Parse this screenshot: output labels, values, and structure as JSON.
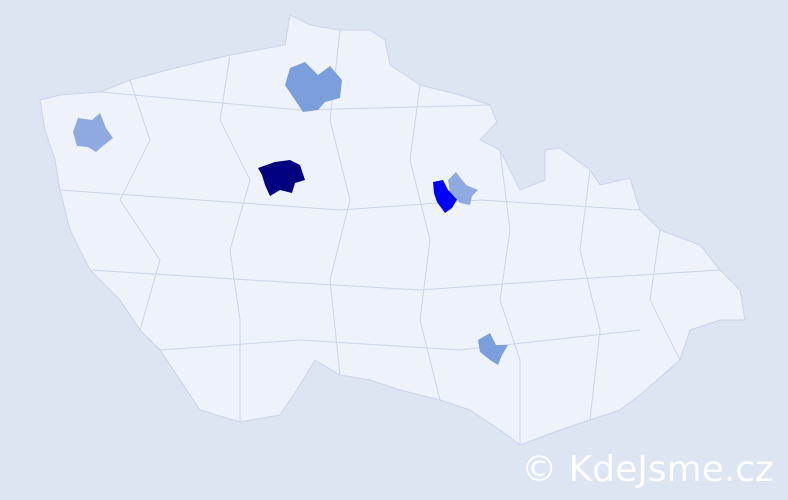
{
  "map": {
    "colors": {
      "background": "#dce5f2",
      "land": "#eef2fa",
      "border": "#c9d5ea",
      "level_highest": "#000080",
      "level_high": "#0000ff",
      "level_medium": "#7b9fdc",
      "level_low": "#8eaae0"
    },
    "highlighted_regions": [
      {
        "level": "highest"
      },
      {
        "level": "high"
      },
      {
        "level": "medium"
      },
      {
        "level": "medium"
      },
      {
        "level": "low"
      },
      {
        "level": "low"
      }
    ]
  },
  "watermark": {
    "text": "© KdeJsme.cz"
  }
}
